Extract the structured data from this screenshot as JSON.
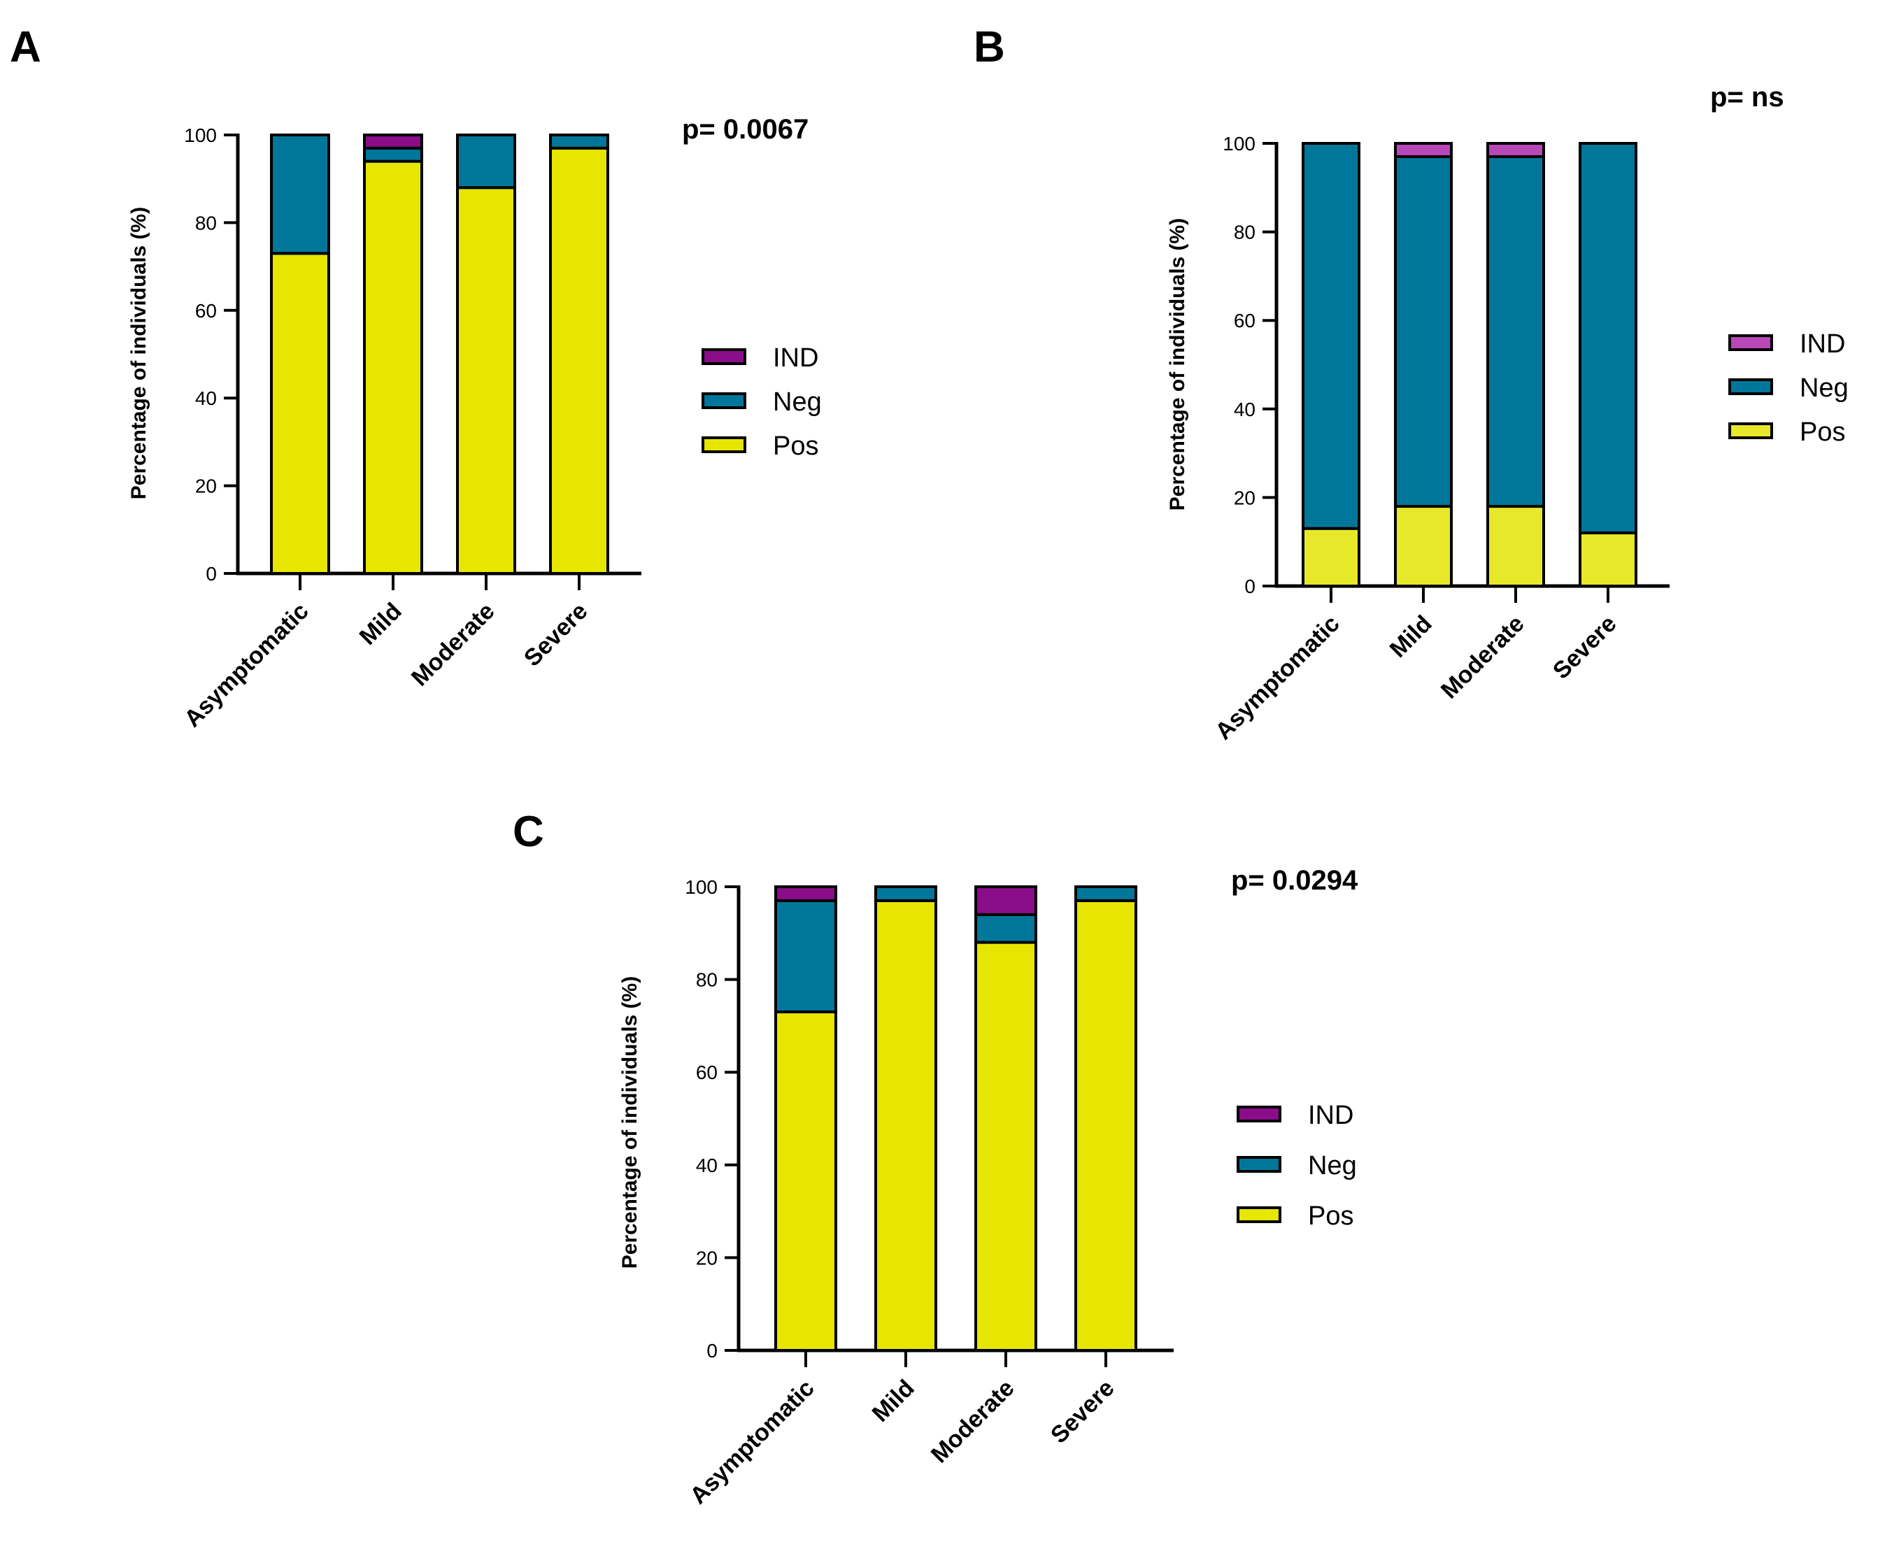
{
  "chart_data": [
    {
      "panel": "A",
      "type": "bar",
      "stacked": true,
      "annotation": "p= 0.0067",
      "categories": [
        "Asymptomatic",
        "Mild",
        "Moderate",
        "Severe"
      ],
      "series": [
        {
          "name": "Pos",
          "values": [
            73,
            94,
            88,
            97
          ],
          "color": "#e6e600"
        },
        {
          "name": "Neg",
          "values": [
            27,
            3,
            12,
            3
          ],
          "color": "#00779a"
        },
        {
          "name": "IND",
          "values": [
            0,
            3,
            0,
            0
          ],
          "color": "#8a0d8a"
        }
      ],
      "ylabel": "Percentage of individuals (%)",
      "ylim": [
        0,
        100
      ],
      "yticks": [
        0,
        20,
        40,
        60,
        80,
        100
      ],
      "legend": [
        {
          "name": "IND",
          "color": "#8a0d8a"
        },
        {
          "name": "Neg",
          "color": "#00779a"
        },
        {
          "name": "Pos",
          "color": "#e6e600"
        }
      ]
    },
    {
      "panel": "B",
      "type": "bar",
      "stacked": true,
      "annotation": "p= ns",
      "categories": [
        "Asymptomatic",
        "Mild",
        "Moderate",
        "Severe"
      ],
      "series": [
        {
          "name": "Pos",
          "values": [
            13,
            18,
            18,
            12
          ],
          "color": "#e8e82a"
        },
        {
          "name": "Neg",
          "values": [
            87,
            79,
            79,
            88
          ],
          "color": "#00779a"
        },
        {
          "name": "IND",
          "values": [
            0,
            3,
            3,
            0
          ],
          "color": "#b847b8"
        }
      ],
      "ylabel": "Percentage of individuals (%)",
      "ylim": [
        0,
        100
      ],
      "yticks": [
        0,
        20,
        40,
        60,
        80,
        100
      ],
      "legend": [
        {
          "name": "IND",
          "color": "#b847b8"
        },
        {
          "name": "Neg",
          "color": "#00779a"
        },
        {
          "name": "Pos",
          "color": "#e8e82a"
        }
      ]
    },
    {
      "panel": "C",
      "type": "bar",
      "stacked": true,
      "annotation": "p= 0.0294",
      "categories": [
        "Asymptomatic",
        "Mild",
        "Moderate",
        "Severe"
      ],
      "series": [
        {
          "name": "Pos",
          "values": [
            73,
            97,
            88,
            97
          ],
          "color": "#e6e600"
        },
        {
          "name": "Neg",
          "values": [
            24,
            3,
            6,
            3
          ],
          "color": "#00779a"
        },
        {
          "name": "IND",
          "values": [
            3,
            0,
            6,
            0
          ],
          "color": "#8a0d8a"
        }
      ],
      "ylabel": "Percentage of individuals (%)",
      "ylim": [
        0,
        100
      ],
      "yticks": [
        0,
        20,
        40,
        60,
        80,
        100
      ],
      "legend": [
        {
          "name": "IND",
          "color": "#8a0d8a"
        },
        {
          "name": "Neg",
          "color": "#00779a"
        },
        {
          "name": "Pos",
          "color": "#e6e600"
        }
      ]
    }
  ]
}
